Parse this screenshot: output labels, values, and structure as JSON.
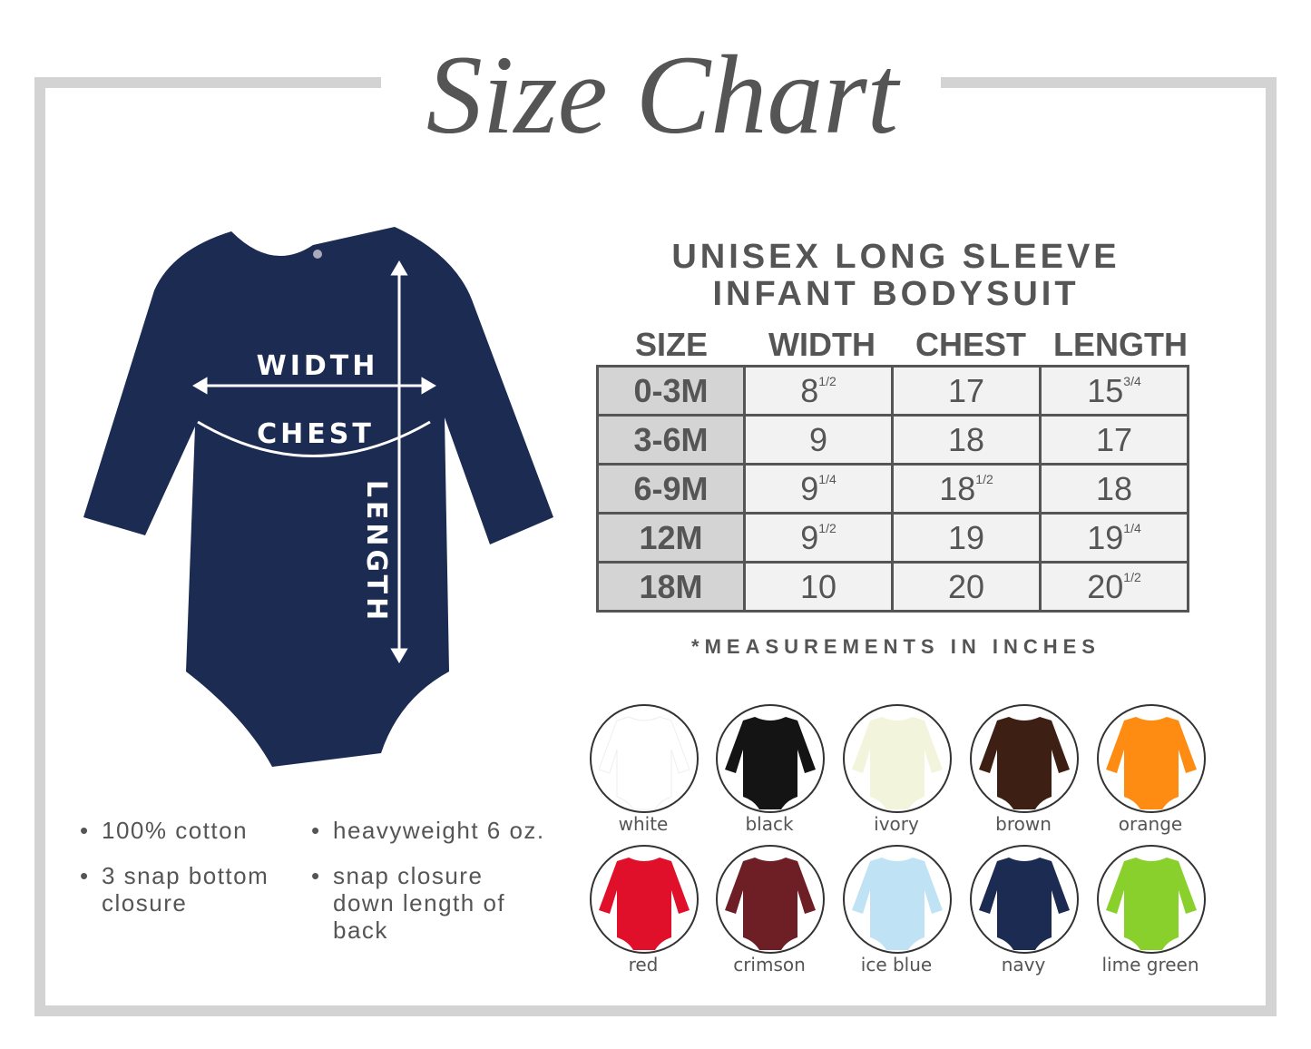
{
  "title": "Size Chart",
  "product": {
    "line1": "UNISEX LONG SLEEVE",
    "line2": "INFANT BODYSUIT"
  },
  "diagram": {
    "width_label": "WIDTH",
    "chest_label": "CHEST",
    "length_label": "LENGTH",
    "garment_color": "#1b2b52"
  },
  "table": {
    "headers": [
      "SIZE",
      "WIDTH",
      "CHEST",
      "LENGTH"
    ],
    "rows": [
      {
        "size": "0-3M",
        "width": "8",
        "width_frac": "1/2",
        "chest": "17",
        "chest_frac": "",
        "length": "15",
        "length_frac": "3/4"
      },
      {
        "size": "3-6M",
        "width": "9",
        "width_frac": "",
        "chest": "18",
        "chest_frac": "",
        "length": "17",
        "length_frac": ""
      },
      {
        "size": "6-9M",
        "width": "9",
        "width_frac": "1/4",
        "chest": "18",
        "chest_frac": "1/2",
        "length": "18",
        "length_frac": ""
      },
      {
        "size": "12M",
        "width": "9",
        "width_frac": "1/2",
        "chest": "19",
        "chest_frac": "",
        "length": "19",
        "length_frac": "1/4"
      },
      {
        "size": "18M",
        "width": "10",
        "width_frac": "",
        "chest": "20",
        "chest_frac": "",
        "length": "20",
        "length_frac": "1/2"
      }
    ],
    "note": "*MEASUREMENTS IN INCHES"
  },
  "features": {
    "col1": [
      "100% cotton",
      "3 snap bottom closure"
    ],
    "col2": [
      "heavyweight 6 oz.",
      "snap closure down length of back"
    ]
  },
  "colors": [
    {
      "name": "white",
      "hex": "#ffffff"
    },
    {
      "name": "black",
      "hex": "#141414"
    },
    {
      "name": "ivory",
      "hex": "#f3f4dc"
    },
    {
      "name": "brown",
      "hex": "#3e1f14"
    },
    {
      "name": "orange",
      "hex": "#ff8c12"
    },
    {
      "name": "red",
      "hex": "#e0102a"
    },
    {
      "name": "crimson",
      "hex": "#6e1f26"
    },
    {
      "name": "ice blue",
      "hex": "#bfe3f5"
    },
    {
      "name": "navy",
      "hex": "#1b2b52"
    },
    {
      "name": "lime green",
      "hex": "#8ad02c"
    }
  ]
}
